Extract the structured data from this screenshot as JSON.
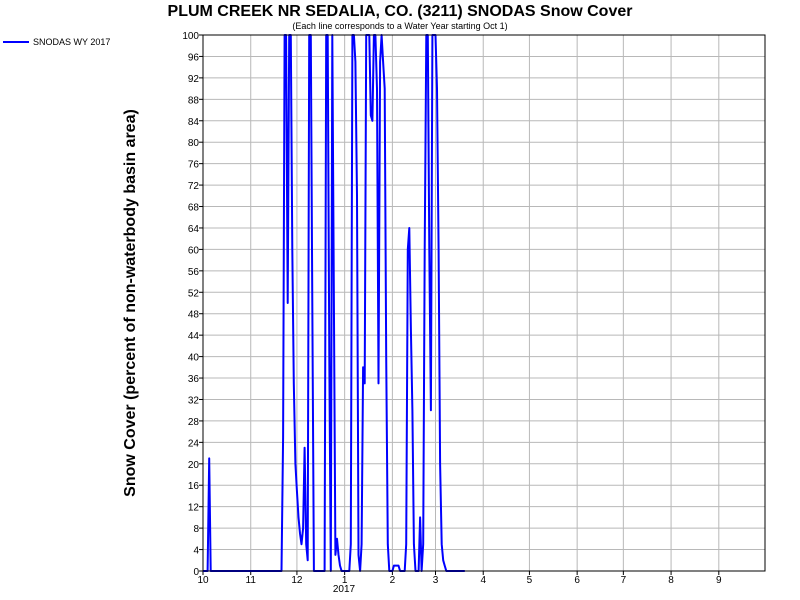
{
  "chart_data": {
    "type": "line",
    "title": "PLUM CREEK NR SEDALIA, CO. (3211) SNODAS Snow Cover",
    "subtitle": "(Each line corresponds to a Water Year starting Oct 1)",
    "xlabel": "",
    "ylabel": "Snow Cover (percent of non-waterbody basin area)",
    "ylim": [
      0,
      100
    ],
    "yticks": [
      0,
      4,
      8,
      12,
      16,
      20,
      24,
      28,
      32,
      36,
      40,
      44,
      48,
      52,
      56,
      60,
      64,
      68,
      72,
      76,
      80,
      84,
      88,
      92,
      96,
      100
    ],
    "xticks": [
      {
        "label": "10",
        "date": "2016-10-01"
      },
      {
        "label": "11",
        "date": "2016-11-01"
      },
      {
        "label": "12",
        "date": "2016-12-01"
      },
      {
        "label": "1",
        "date": "2017-01-01"
      },
      {
        "label": "2",
        "date": "2017-02-01"
      },
      {
        "label": "3",
        "date": "2017-03-01"
      },
      {
        "label": "4",
        "date": "2017-04-01"
      },
      {
        "label": "5",
        "date": "2017-05-01"
      },
      {
        "label": "6",
        "date": "2017-06-01"
      },
      {
        "label": "7",
        "date": "2017-07-01"
      },
      {
        "label": "8",
        "date": "2017-08-01"
      },
      {
        "label": "9",
        "date": "2017-09-01"
      }
    ],
    "year_label": "2017",
    "xlim": [
      "2016-10-01",
      "2017-09-30"
    ],
    "grid": true,
    "legend_position": "top-left",
    "series": [
      {
        "name": "SNODAS WY 2017",
        "color": "#0000ff",
        "points": [
          [
            "2016-10-01",
            0
          ],
          [
            "2016-10-04",
            0
          ],
          [
            "2016-10-05",
            21
          ],
          [
            "2016-10-06",
            0
          ],
          [
            "2016-11-21",
            0
          ],
          [
            "2016-11-22",
            25
          ],
          [
            "2016-11-23",
            100
          ],
          [
            "2016-11-24",
            100
          ],
          [
            "2016-11-25",
            50
          ],
          [
            "2016-11-26",
            100
          ],
          [
            "2016-11-27",
            100
          ],
          [
            "2016-11-28",
            60
          ],
          [
            "2016-11-29",
            35
          ],
          [
            "2016-11-30",
            20
          ],
          [
            "2016-12-01",
            15
          ],
          [
            "2016-12-02",
            10
          ],
          [
            "2016-12-03",
            7
          ],
          [
            "2016-12-04",
            5
          ],
          [
            "2016-12-05",
            8
          ],
          [
            "2016-12-06",
            23
          ],
          [
            "2016-12-07",
            5
          ],
          [
            "2016-12-08",
            2
          ],
          [
            "2016-12-09",
            100
          ],
          [
            "2016-12-10",
            100
          ],
          [
            "2016-12-11",
            50
          ],
          [
            "2016-12-12",
            0
          ],
          [
            "2016-12-19",
            0
          ],
          [
            "2016-12-20",
            100
          ],
          [
            "2016-12-21",
            100
          ],
          [
            "2016-12-22",
            40
          ],
          [
            "2016-12-23",
            0
          ],
          [
            "2016-12-24",
            100
          ],
          [
            "2016-12-25",
            50
          ],
          [
            "2016-12-26",
            3
          ],
          [
            "2016-12-27",
            6
          ],
          [
            "2016-12-28",
            3
          ],
          [
            "2016-12-29",
            1
          ],
          [
            "2016-12-30",
            0
          ],
          [
            "2017-01-04",
            0
          ],
          [
            "2017-01-05",
            5
          ],
          [
            "2017-01-06",
            100
          ],
          [
            "2017-01-07",
            100
          ],
          [
            "2017-01-08",
            95
          ],
          [
            "2017-01-09",
            70
          ],
          [
            "2017-01-10",
            3
          ],
          [
            "2017-01-11",
            0
          ],
          [
            "2017-01-12",
            5
          ],
          [
            "2017-01-13",
            38
          ],
          [
            "2017-01-14",
            35
          ],
          [
            "2017-01-15",
            100
          ],
          [
            "2017-01-16",
            100
          ],
          [
            "2017-01-17",
            100
          ],
          [
            "2017-01-18",
            85
          ],
          [
            "2017-01-19",
            84
          ],
          [
            "2017-01-20",
            100
          ],
          [
            "2017-01-21",
            100
          ],
          [
            "2017-01-22",
            90
          ],
          [
            "2017-01-23",
            35
          ],
          [
            "2017-01-24",
            95
          ],
          [
            "2017-01-25",
            100
          ],
          [
            "2017-01-26",
            95
          ],
          [
            "2017-01-27",
            90
          ],
          [
            "2017-01-28",
            40
          ],
          [
            "2017-01-29",
            5
          ],
          [
            "2017-01-30",
            0
          ],
          [
            "2017-02-01",
            0
          ],
          [
            "2017-02-02",
            1
          ],
          [
            "2017-02-05",
            1
          ],
          [
            "2017-02-06",
            0
          ],
          [
            "2017-02-09",
            0
          ],
          [
            "2017-02-10",
            5
          ],
          [
            "2017-02-11",
            60
          ],
          [
            "2017-02-12",
            64
          ],
          [
            "2017-02-13",
            45
          ],
          [
            "2017-02-14",
            30
          ],
          [
            "2017-02-15",
            5
          ],
          [
            "2017-02-16",
            0
          ],
          [
            "2017-02-18",
            0
          ],
          [
            "2017-02-19",
            10
          ],
          [
            "2017-02-20",
            0
          ],
          [
            "2017-02-21",
            5
          ],
          [
            "2017-02-22",
            60
          ],
          [
            "2017-02-23",
            100
          ],
          [
            "2017-02-24",
            100
          ],
          [
            "2017-02-25",
            60
          ],
          [
            "2017-02-26",
            30
          ],
          [
            "2017-02-27",
            100
          ],
          [
            "2017-02-28",
            100
          ],
          [
            "2017-03-01",
            100
          ],
          [
            "2017-03-02",
            90
          ],
          [
            "2017-03-03",
            60
          ],
          [
            "2017-03-04",
            20
          ],
          [
            "2017-03-05",
            5
          ],
          [
            "2017-03-06",
            2
          ],
          [
            "2017-03-07",
            1
          ],
          [
            "2017-03-08",
            0
          ],
          [
            "2017-03-20",
            0
          ]
        ]
      }
    ]
  }
}
